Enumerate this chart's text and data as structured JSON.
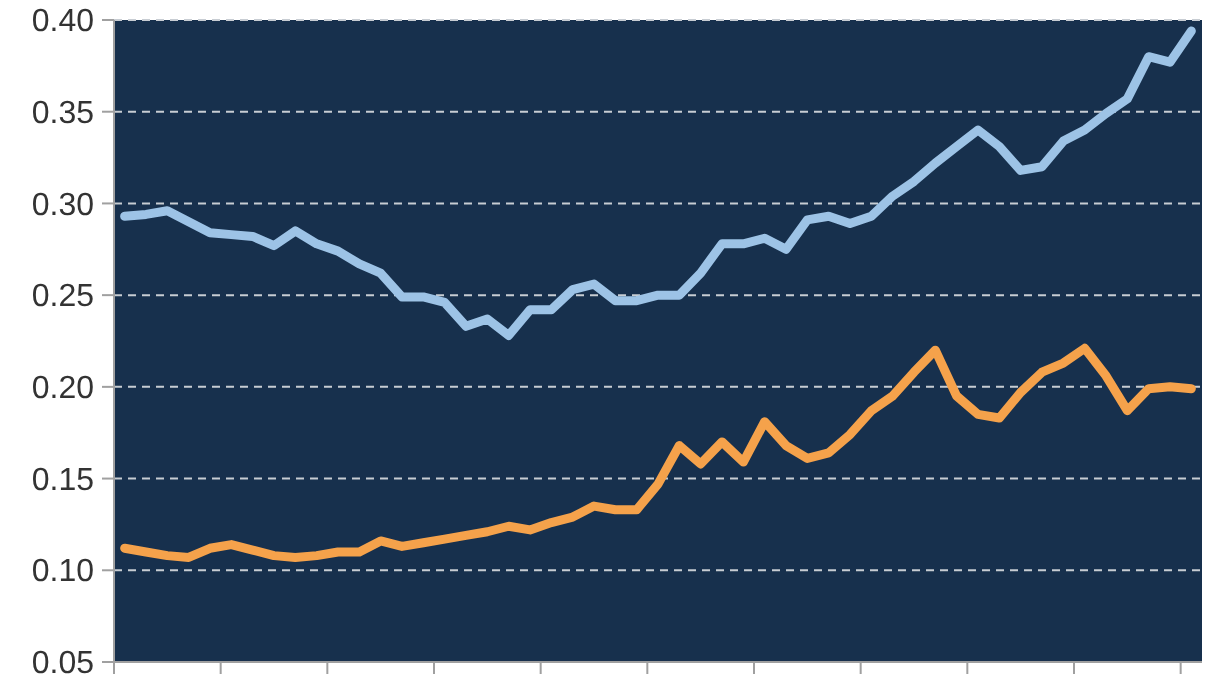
{
  "chart_data": {
    "type": "line",
    "categories": [
      null,
      null,
      null,
      null,
      null,
      null,
      null,
      null,
      null,
      null,
      null,
      null,
      null,
      null,
      null,
      null,
      null,
      null,
      null,
      null,
      null,
      null,
      null,
      null,
      null,
      null,
      null,
      null,
      null,
      null,
      null,
      null,
      null,
      null,
      null,
      null,
      null,
      null,
      null,
      null,
      null,
      null,
      null,
      null,
      null,
      null,
      null,
      null,
      null,
      null,
      null
    ],
    "series": [
      {
        "color": "#9dc3e6",
        "values": [
          0.293,
          0.294,
          0.296,
          0.29,
          0.284,
          0.283,
          0.282,
          0.277,
          0.285,
          0.278,
          0.274,
          0.267,
          0.262,
          0.249,
          0.249,
          0.246,
          0.233,
          0.237,
          0.228,
          0.242,
          0.242,
          0.253,
          0.256,
          0.247,
          0.247,
          0.25,
          0.25,
          0.262,
          0.278,
          0.278,
          0.281,
          0.275,
          0.291,
          0.293,
          0.289,
          0.293,
          0.304,
          0.312,
          0.322,
          0.331,
          0.34,
          0.331,
          0.318,
          0.32,
          0.334,
          0.34,
          0.349,
          0.357,
          0.38,
          0.377,
          0.394
        ]
      },
      {
        "color": "#f5a24b",
        "values": [
          0.112,
          0.11,
          0.108,
          0.107,
          0.112,
          0.114,
          0.111,
          0.108,
          0.107,
          0.108,
          0.11,
          0.11,
          0.116,
          0.113,
          0.115,
          0.117,
          0.119,
          0.121,
          0.124,
          0.122,
          0.126,
          0.129,
          0.135,
          0.133,
          0.133,
          0.147,
          0.168,
          0.158,
          0.17,
          0.159,
          0.181,
          0.168,
          0.161,
          0.164,
          0.174,
          0.187,
          0.195,
          0.208,
          0.22,
          0.195,
          0.185,
          0.183,
          0.197,
          0.208,
          0.213,
          0.221,
          0.206,
          0.187,
          0.199,
          0.2,
          0.199
        ]
      }
    ],
    "ylim": [
      0.05,
      0.4
    ],
    "yticks": [
      0.05,
      {
        "value": 0.1,
        "label": "0.10"
      },
      0.15,
      {
        "value": 0.2,
        "label": "0.20"
      },
      0.25,
      {
        "value": 0.3,
        "label": "0.30"
      },
      0.35,
      {
        "value": 0.4,
        "label": "0.40"
      }
    ],
    "grid": "y",
    "tick_labels": "y"
  }
}
